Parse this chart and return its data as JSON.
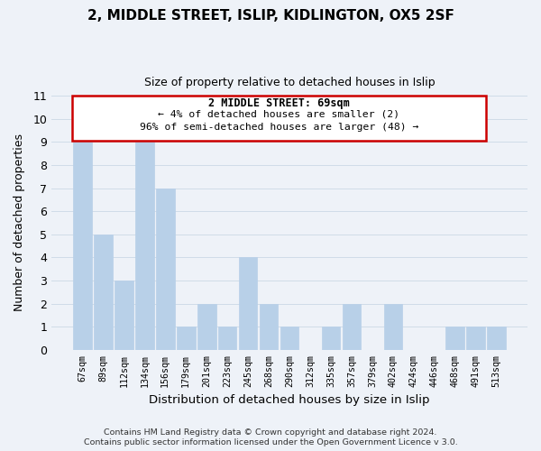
{
  "title_line1": "2, MIDDLE STREET, ISLIP, KIDLINGTON, OX5 2SF",
  "title_line2": "Size of property relative to detached houses in Islip",
  "xlabel": "Distribution of detached houses by size in Islip",
  "ylabel": "Number of detached properties",
  "categories": [
    "67sqm",
    "89sqm",
    "112sqm",
    "134sqm",
    "156sqm",
    "179sqm",
    "201sqm",
    "223sqm",
    "245sqm",
    "268sqm",
    "290sqm",
    "312sqm",
    "335sqm",
    "357sqm",
    "379sqm",
    "402sqm",
    "424sqm",
    "446sqm",
    "468sqm",
    "491sqm",
    "513sqm"
  ],
  "values": [
    9,
    5,
    3,
    9,
    7,
    1,
    2,
    1,
    4,
    2,
    1,
    0,
    1,
    2,
    0,
    2,
    0,
    0,
    1,
    1,
    1
  ],
  "bar_color": "#b8d0e8",
  "bar_edge_color": "#b8d0e8",
  "ylim": [
    0,
    11
  ],
  "yticks": [
    0,
    1,
    2,
    3,
    4,
    5,
    6,
    7,
    8,
    9,
    10,
    11
  ],
  "annotation_title": "2 MIDDLE STREET: 69sqm",
  "annotation_line1": "← 4% of detached houses are smaller (2)",
  "annotation_line2": "96% of semi-detached houses are larger (48) →",
  "annotation_box_color": "#ffffff",
  "annotation_box_edge_color": "#cc0000",
  "footer_line1": "Contains HM Land Registry data © Crown copyright and database right 2024.",
  "footer_line2": "Contains public sector information licensed under the Open Government Licence v 3.0.",
  "grid_color": "#d0dce8",
  "background_color": "#eef2f8"
}
